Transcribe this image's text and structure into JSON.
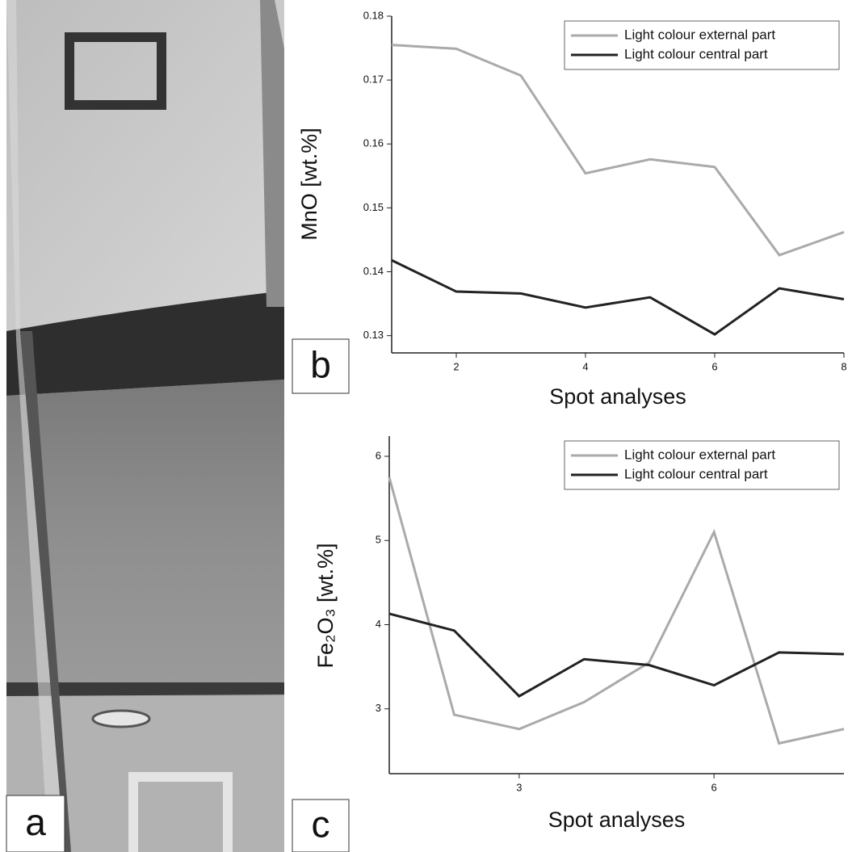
{
  "image_panel": {
    "label": "a"
  },
  "chart_data": [
    {
      "type": "line",
      "panel_label": "b",
      "xlabel": "Spot analyses",
      "ylabel": "MnO [wt.%]",
      "x": [
        1,
        2,
        3,
        4,
        5,
        6,
        7,
        8
      ],
      "series": [
        {
          "name": "Light colour external part",
          "color": "#aaaaaa",
          "values": [
            0.1755,
            0.1749,
            0.1707,
            0.1554,
            0.1576,
            0.1564,
            0.1426,
            0.1462
          ]
        },
        {
          "name": "Light colour central part",
          "color": "#222222",
          "values": [
            0.1418,
            0.1369,
            0.1366,
            0.1344,
            0.136,
            0.1302,
            0.1374,
            0.1357
          ]
        }
      ],
      "xlim": [
        1,
        8
      ],
      "xticks": [
        2,
        4,
        6,
        8
      ],
      "ylim": [
        0.1273,
        0.18
      ],
      "yticks": [
        0.13,
        0.14,
        0.15,
        0.16,
        0.17,
        0.18
      ],
      "legend": "upper right"
    },
    {
      "type": "line",
      "panel_label": "c",
      "xlabel": "Spot analyses",
      "ylabel": "Fe₂O₃ [wt.%]",
      "x": [
        1,
        2,
        3,
        4,
        5,
        6,
        7,
        8
      ],
      "series": [
        {
          "name": "Light colour external part",
          "color": "#aaaaaa",
          "values": [
            5.75,
            2.93,
            2.76,
            3.08,
            3.55,
            5.1,
            2.59,
            2.76
          ]
        },
        {
          "name": "Light colour central part",
          "color": "#222222",
          "values": [
            4.13,
            3.93,
            3.15,
            3.59,
            3.52,
            3.28,
            3.67,
            3.65
          ]
        }
      ],
      "xlim": [
        1,
        8
      ],
      "xticks": [
        3,
        6
      ],
      "ylim": [
        2.23,
        6.24
      ],
      "yticks": [
        3,
        4,
        5,
        6
      ],
      "legend": "upper right"
    }
  ]
}
